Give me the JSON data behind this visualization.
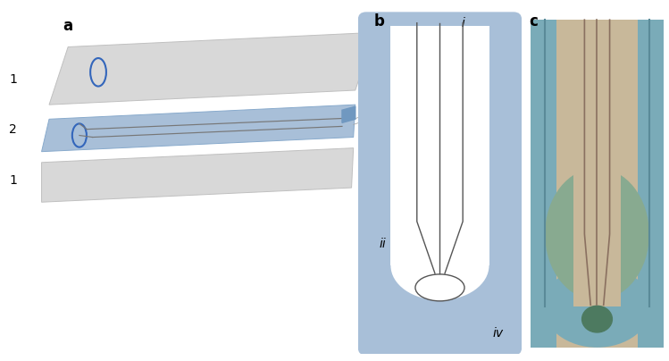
{
  "fig_width": 7.49,
  "fig_height": 4.04,
  "bg_color": "#ffffff",
  "label_a": "a",
  "label_b": "b",
  "label_c": "c",
  "gray": "#d8d8d8",
  "blue_fill": "#a8bfd8",
  "blue_dark": "#7098c0",
  "white_fill": "#ffffff",
  "green_fill": "#88aa90",
  "green_light": "#9abda5",
  "tan_fill": "#c8b89a",
  "teal_fill": "#7aabb8",
  "dark_green": "#4d7a60",
  "ellipse_color": "#3366bb",
  "line_color": "#666666",
  "label_1": "1",
  "label_2": "2"
}
